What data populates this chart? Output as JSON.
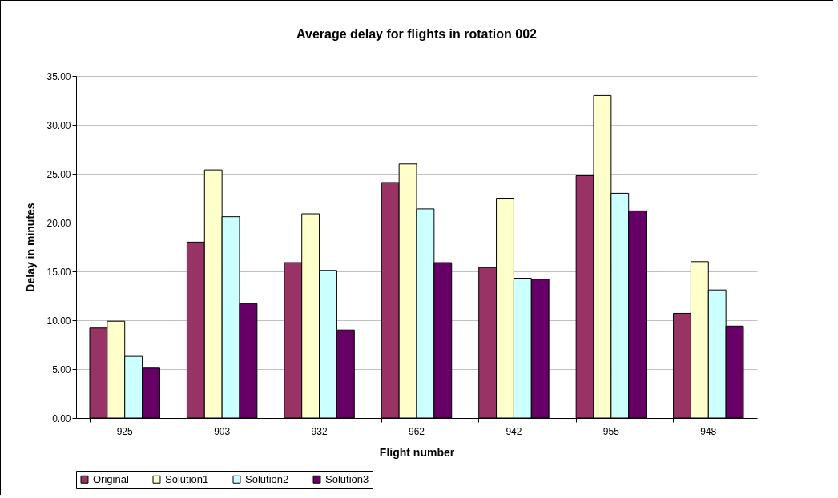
{
  "chart_data": {
    "type": "bar",
    "title": "Average delay for flights in rotation 002",
    "xlabel": "Flight number",
    "ylabel": "Delay in minutes",
    "categories": [
      "925",
      "903",
      "932",
      "962",
      "942",
      "955",
      "948"
    ],
    "series": [
      {
        "name": "Original",
        "color": "#993366",
        "values": [
          9.2,
          18.0,
          15.9,
          24.1,
          15.4,
          24.8,
          10.7
        ]
      },
      {
        "name": "Solution1",
        "color": "#ffffcc",
        "values": [
          9.9,
          25.4,
          20.9,
          26.0,
          22.5,
          33.0,
          16.0
        ]
      },
      {
        "name": "Solution2",
        "color": "#ccffff",
        "values": [
          6.3,
          20.6,
          15.1,
          21.4,
          14.3,
          23.0,
          13.1
        ]
      },
      {
        "name": "Solution3",
        "color": "#660066",
        "values": [
          5.1,
          11.7,
          9.0,
          15.9,
          14.2,
          21.2,
          9.4
        ]
      }
    ],
    "ylim": [
      0,
      35
    ],
    "yticks": [
      {
        "value": 0,
        "label": "0.00"
      },
      {
        "value": 5,
        "label": "5.00"
      },
      {
        "value": 10,
        "label": "10.00"
      },
      {
        "value": 15,
        "label": "15.00"
      },
      {
        "value": 20,
        "label": "20.00"
      },
      {
        "value": 25,
        "label": "25.00"
      },
      {
        "value": 30,
        "label": "30.00"
      },
      {
        "value": 35,
        "label": "35.00"
      }
    ],
    "grid": "y",
    "legend": "bottom"
  }
}
